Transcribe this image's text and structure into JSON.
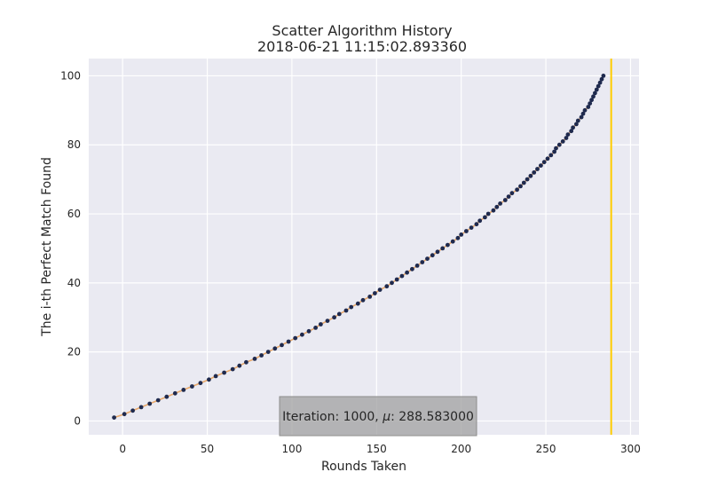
{
  "chart_data": {
    "type": "scatter",
    "title": "Scatter Algorithm History",
    "subtitle": "2018-06-21 11:15:02.893360",
    "xlabel": "Rounds Taken",
    "ylabel": "The i-th Perfect Match Found",
    "xlim": [
      -20,
      305
    ],
    "ylim": [
      -4,
      105
    ],
    "xticks": [
      "0",
      "50",
      "100",
      "150",
      "200",
      "250",
      "300"
    ],
    "yticks": [
      "0",
      "20",
      "40",
      "60",
      "80",
      "100"
    ],
    "grid": true,
    "background_color": "#eaeaf2",
    "point_color": "#1f2a4e",
    "trend_color": "#e8a86a",
    "vline_color": "#ffcc00",
    "vline_x": 288.583,
    "annotation_prefix": "Iteration: 1000, ",
    "annotation_mu": "μ",
    "annotation_value": ":  288.583000",
    "series": [
      {
        "y": [
          1,
          2,
          3,
          4,
          5,
          6,
          7,
          8,
          9,
          10,
          11,
          12,
          13,
          14,
          15,
          16,
          17,
          18,
          19,
          20,
          21,
          22,
          23,
          24,
          25,
          26,
          27,
          28,
          29,
          30,
          31,
          32,
          33,
          34,
          35,
          36,
          37,
          38,
          39,
          40,
          41,
          42,
          43,
          44,
          45,
          46,
          47,
          48,
          49,
          50,
          51,
          52,
          53,
          54,
          55,
          56,
          57,
          58,
          59,
          60,
          61,
          62,
          63,
          64,
          65,
          66,
          67,
          68,
          69,
          70,
          71,
          72,
          73,
          74,
          75,
          76,
          77,
          78,
          79,
          80,
          81,
          82,
          83,
          84,
          85,
          86,
          87,
          88,
          89,
          90,
          91,
          92,
          93,
          94,
          95,
          96,
          97,
          98,
          99,
          100
        ],
        "x": [
          -5,
          1,
          6,
          11,
          16,
          21,
          26,
          31,
          36,
          41,
          46,
          51,
          55,
          60,
          65,
          69,
          73,
          78,
          82,
          86,
          90,
          94,
          98,
          102,
          106,
          110,
          114,
          117,
          121,
          125,
          128,
          132,
          135,
          139,
          142,
          146,
          149,
          152,
          156,
          159,
          162,
          165,
          168,
          171,
          174,
          177,
          180,
          183,
          186,
          189,
          192,
          195,
          198,
          200,
          203,
          206,
          209,
          211,
          214,
          216,
          219,
          221,
          223,
          226,
          228,
          230,
          233,
          235,
          237,
          239,
          241,
          243,
          245,
          247,
          249,
          251,
          253,
          255,
          256,
          258,
          260,
          262,
          263,
          265,
          266,
          268,
          269,
          271,
          272,
          273,
          275,
          276,
          277,
          278,
          279,
          280,
          281,
          282,
          283,
          284
        ]
      }
    ]
  }
}
